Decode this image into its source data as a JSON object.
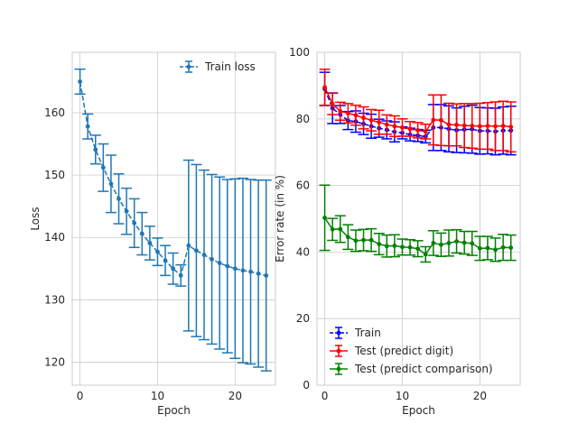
{
  "chart_data": [
    {
      "type": "line",
      "xlabel": "Epoch",
      "ylabel": "Loss",
      "xlim": [
        -1,
        25.2
      ],
      "ylim": [
        116.3,
        169.7
      ],
      "xticks": [
        0,
        10,
        20
      ],
      "yticks": [
        120,
        130,
        140,
        150,
        160
      ],
      "grid": true,
      "legend_position": "upper right",
      "series": [
        {
          "name": "Train loss",
          "color": "#1f77b4",
          "marker": "point",
          "linestyle": "dashed",
          "x": [
            0,
            1,
            2,
            3,
            4,
            5,
            6,
            7,
            8,
            9,
            10,
            11,
            12,
            13,
            14,
            15,
            16,
            17,
            18,
            19,
            20,
            21,
            22,
            23,
            24
          ],
          "y": [
            165.0,
            157.8,
            154.1,
            151.2,
            148.6,
            146.2,
            144.2,
            142.3,
            140.6,
            139.1,
            137.7,
            136.3,
            135.0,
            133.9,
            138.7,
            137.9,
            137.2,
            136.5,
            135.9,
            135.4,
            135.0,
            134.7,
            134.5,
            134.2,
            133.9
          ],
          "err": [
            2.0,
            2.0,
            2.3,
            3.8,
            4.6,
            4.0,
            3.7,
            3.9,
            3.4,
            2.7,
            2.2,
            2.4,
            2.5,
            1.7,
            13.7,
            13.8,
            13.6,
            13.6,
            13.8,
            13.9,
            14.4,
            14.8,
            14.8,
            15.0,
            15.3
          ]
        }
      ]
    },
    {
      "type": "line",
      "xlabel": "Epoch",
      "ylabel": "Error rate (in %)",
      "xlim": [
        -1,
        25.2
      ],
      "ylim": [
        0,
        100
      ],
      "xticks": [
        0,
        10,
        20
      ],
      "yticks": [
        0,
        20,
        40,
        60,
        80,
        100
      ],
      "grid": true,
      "legend_position": "lower left",
      "series": [
        {
          "name": "Train",
          "color": "#0000ff",
          "marker": "point",
          "linestyle": "dashed",
          "x": [
            0,
            1,
            2,
            3,
            4,
            5,
            6,
            7,
            8,
            9,
            10,
            11,
            12,
            13,
            14,
            15,
            16,
            17,
            18,
            19,
            20,
            21,
            22,
            23,
            24
          ],
          "y": [
            89.0,
            83.2,
            81.3,
            79.5,
            79.2,
            78.5,
            77.8,
            77.2,
            76.7,
            76.1,
            75.8,
            75.3,
            75.0,
            74.7,
            77.4,
            77.4,
            77.0,
            76.6,
            76.8,
            76.9,
            76.4,
            76.4,
            76.2,
            76.5,
            76.5
          ],
          "err": [
            5.0,
            4.6,
            2.7,
            2.7,
            3.2,
            3.2,
            3.6,
            2.7,
            2.7,
            3.0,
            1.8,
            1.9,
            1.8,
            1.9,
            6.9,
            6.9,
            6.9,
            6.7,
            7.0,
            7.2,
            7.0,
            6.9,
            7.0,
            7.1,
            7.3
          ]
        },
        {
          "name": "Test (predict digit)",
          "color": "#ff0000",
          "marker": "point",
          "linestyle": "solid",
          "x": [
            0,
            1,
            2,
            3,
            4,
            5,
            6,
            7,
            8,
            9,
            10,
            11,
            12,
            13,
            14,
            15,
            16,
            17,
            18,
            19,
            20,
            21,
            22,
            23,
            24
          ],
          "y": [
            89.5,
            84.5,
            82.3,
            81.7,
            81.1,
            80.3,
            79.6,
            79.0,
            78.3,
            77.8,
            77.4,
            77.0,
            76.6,
            76.2,
            79.7,
            79.6,
            78.3,
            78.2,
            78.0,
            77.9,
            77.8,
            77.9,
            77.8,
            77.9,
            77.6
          ],
          "err": [
            5.4,
            3.2,
            2.7,
            2.9,
            3.0,
            3.3,
            3.2,
            3.6,
            2.9,
            3.1,
            2.6,
            2.2,
            2.3,
            2.2,
            7.5,
            7.6,
            6.4,
            6.3,
            6.6,
            6.7,
            6.9,
            7.0,
            7.3,
            7.4,
            7.5
          ]
        },
        {
          "name": "Test (predict comparison)",
          "color": "#008000",
          "marker": "point",
          "linestyle": "solid",
          "x": [
            0,
            1,
            2,
            3,
            4,
            5,
            6,
            7,
            8,
            9,
            10,
            11,
            12,
            13,
            14,
            15,
            16,
            17,
            18,
            19,
            20,
            21,
            22,
            23,
            24
          ],
          "y": [
            50.3,
            46.8,
            46.9,
            44.5,
            43.4,
            43.6,
            43.6,
            42.4,
            41.8,
            41.9,
            41.5,
            41.4,
            41.0,
            39.3,
            42.7,
            42.2,
            42.7,
            43.2,
            42.8,
            42.6,
            41.1,
            41.2,
            40.7,
            41.4,
            41.3
          ],
          "err": [
            9.8,
            3.3,
            4.0,
            3.7,
            3.2,
            3.2,
            3.4,
            3.2,
            3.3,
            3.3,
            2.4,
            2.3,
            2.4,
            2.3,
            3.7,
            3.5,
            3.9,
            3.5,
            3.4,
            3.6,
            3.6,
            3.5,
            3.5,
            3.9,
            3.8
          ]
        }
      ]
    }
  ]
}
